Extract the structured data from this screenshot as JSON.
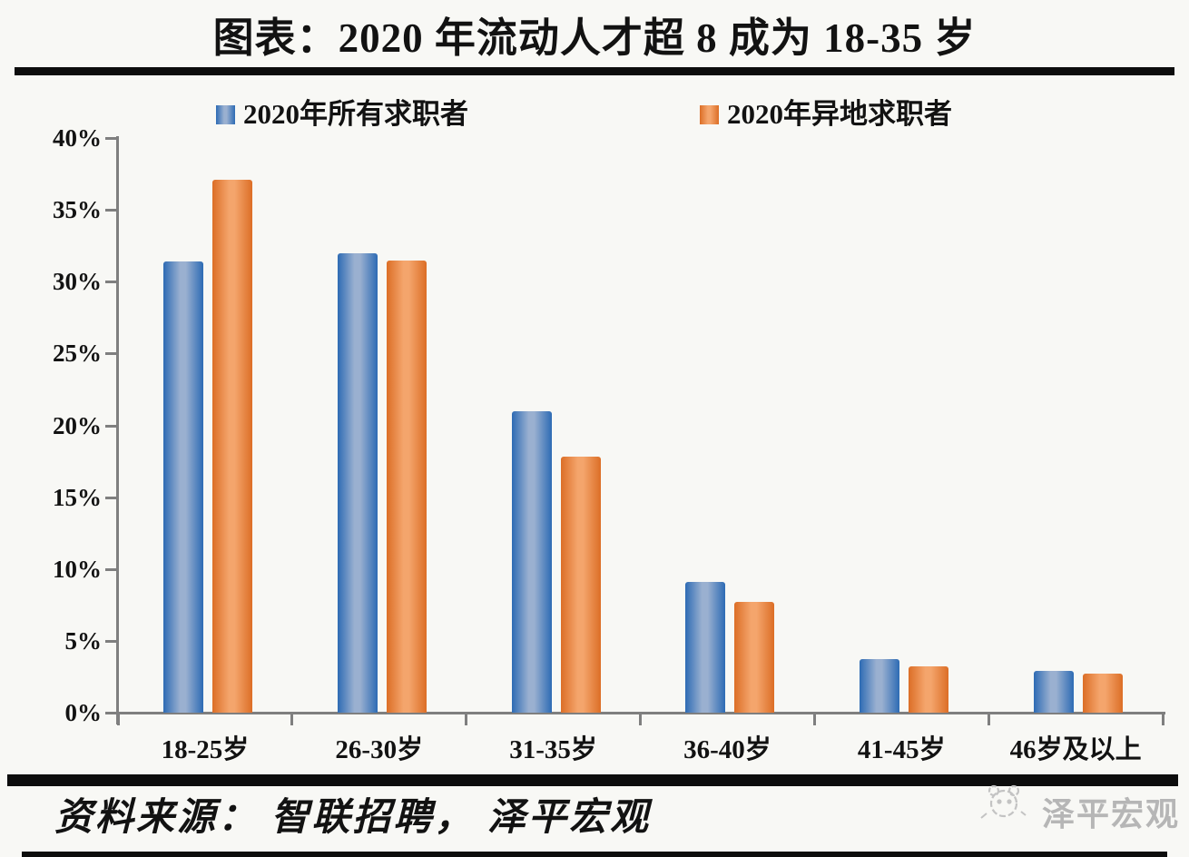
{
  "chart_data": {
    "type": "bar",
    "title": "图表：2020 年流动人才超 8 成为 18-35 岁",
    "categories": [
      "18-25岁",
      "26-30岁",
      "31-35岁",
      "36-40岁",
      "41-45岁",
      "46岁及以上"
    ],
    "series": [
      {
        "name": "2020年所有求职者",
        "values": [
          31.4,
          32.0,
          21.0,
          9.1,
          3.7,
          2.9
        ],
        "color_edge": "#2d6bb4",
        "color_light": "#9ab0d0"
      },
      {
        "name": "2020年异地求职者",
        "values": [
          37.1,
          31.5,
          17.8,
          7.7,
          3.2,
          2.7
        ],
        "color_edge": "#dc6e26",
        "color_light": "#f4a56c"
      }
    ],
    "xlabel": "",
    "ylabel": "",
    "ylim": [
      0,
      40
    ],
    "ytick_step": 5,
    "ytick_labels": [
      "0%",
      "5%",
      "10%",
      "15%",
      "20%",
      "25%",
      "30%",
      "35%",
      "40%"
    ],
    "grid": false,
    "legend_position": "top"
  },
  "footer": {
    "source_label": "资料来源： 智联招聘， 泽平宏观"
  },
  "watermark": {
    "brand": "泽平宏观",
    "icon": "panda-sketch"
  },
  "colors": {
    "background": "#f8f8f5",
    "axis": "#7f7f7f",
    "rule": "#0d0d0d",
    "watermark_gray": "#b6b6b6"
  }
}
